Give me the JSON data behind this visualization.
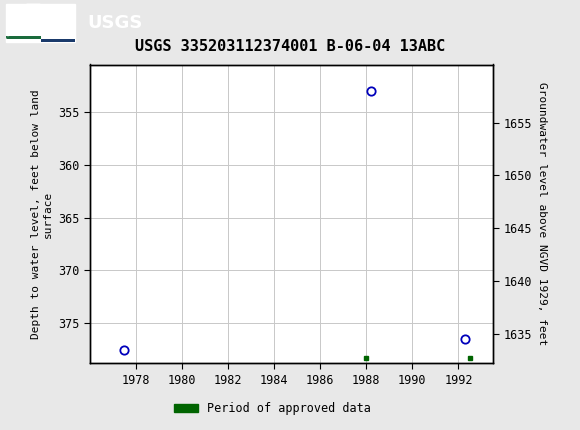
{
  "title": "USGS 335203112374001 B-06-04 13ABC",
  "ylabel_left": "Depth to water level, feet below land\nsurface",
  "ylabel_right": "Groundwater level above NGVD 1929, feet",
  "header_color": "#1a6b3c",
  "plot_bg_color": "#ffffff",
  "grid_color": "#c8c8c8",
  "data_points": [
    {
      "x": 1977.5,
      "y_left": 377.5
    },
    {
      "x": 1988.2,
      "y_left": 353.0
    },
    {
      "x": 1992.3,
      "y_left": 376.5
    }
  ],
  "approved_data_points": [
    {
      "x": 1988.0,
      "y_left": 378.3
    },
    {
      "x": 1992.5,
      "y_left": 378.3
    }
  ],
  "xlim": [
    1976.0,
    1993.5
  ],
  "ylim_left_bottom": 378.8,
  "ylim_left_top": 350.5,
  "ylim_right_bottom": 1632.2,
  "ylim_right_top": 1660.5,
  "xticks": [
    1978,
    1980,
    1982,
    1984,
    1986,
    1988,
    1990,
    1992
  ],
  "yticks_left": [
    355,
    360,
    365,
    370,
    375
  ],
  "yticks_right": [
    1635,
    1640,
    1645,
    1650,
    1655
  ],
  "circle_color": "#0000bb",
  "approved_color": "#006400",
  "point_size": 6,
  "approved_size": 3.5,
  "title_fontsize": 11,
  "axis_label_fontsize": 8,
  "tick_fontsize": 8.5,
  "legend_fontsize": 8.5
}
